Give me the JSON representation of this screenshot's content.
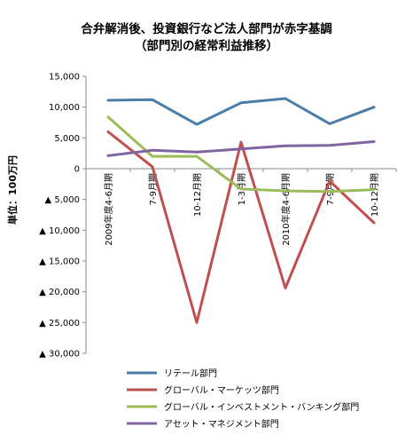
{
  "chart_data": {
    "type": "line",
    "title": "合弁解消後、投資銀行など法人部門が赤字基調",
    "subtitle": "（部門別の経常利益推移）",
    "ylabel": "単位：100万円",
    "xlabel": "",
    "ylim": [
      -30000,
      15000
    ],
    "ytick_values": [
      15000,
      10000,
      5000,
      0,
      -5000,
      -10000,
      -15000,
      -20000,
      -25000,
      -30000
    ],
    "ytick_labels": [
      "15,000",
      "10,000",
      "5,000",
      "0",
      "▲ 5,000",
      "▲ 10,000",
      "▲ 15,000",
      "▲ 20,000",
      "▲ 25,000",
      "▲ 30,000"
    ],
    "categories": [
      "2009年度4-6月期",
      "7-9月期",
      "10-12月期",
      "1-3月期",
      "2010年度4-6月期",
      "7-9月期",
      "10-12月期"
    ],
    "grid": false,
    "legend_position": "bottom",
    "series": [
      {
        "name": "リテール部門",
        "color": "#4a7ea8",
        "values": [
          11100,
          11200,
          7200,
          10700,
          11400,
          7300,
          10000
        ]
      },
      {
        "name": "グローバル・マーケッツ部門",
        "color": "#c0504d",
        "values": [
          6000,
          300,
          -25000,
          4300,
          -19400,
          -2000,
          -8800
        ]
      },
      {
        "name": "グローバル・インベストメント・バンキング部門",
        "color": "#9bbb59",
        "values": [
          8400,
          2000,
          2000,
          -3300,
          -3600,
          -3700,
          -3400
        ]
      },
      {
        "name": "アセット・マネジメント部門",
        "color": "#8064a2",
        "values": [
          2100,
          3000,
          2700,
          3200,
          3700,
          3800,
          4400
        ]
      }
    ]
  }
}
